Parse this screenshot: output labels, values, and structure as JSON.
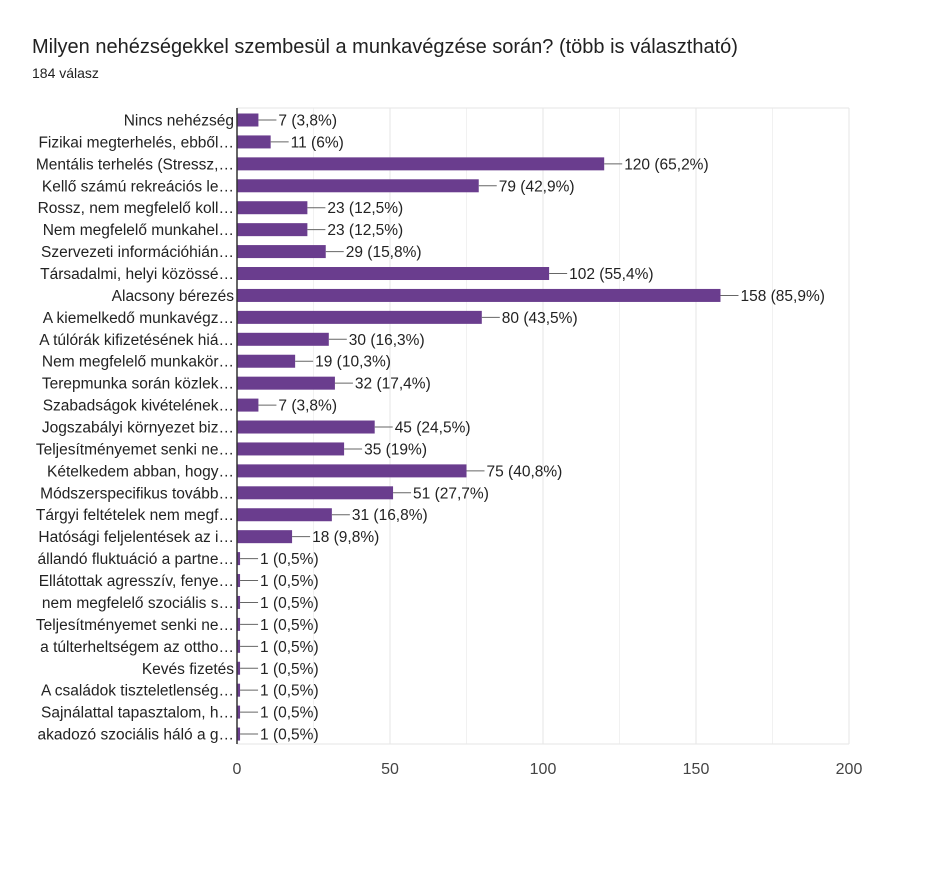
{
  "header": {
    "title": "Milyen nehézségekkel szembesül a munkavégzése során? (több is választható)",
    "subtitle": "184 válasz"
  },
  "colors": {
    "bar": "#6a3d8e",
    "grid": "#e6e6e6",
    "axis": "#333333",
    "connector": "#666666"
  },
  "chart_data": {
    "type": "bar",
    "orientation": "horizontal",
    "title": "Milyen nehézségekkel szembesül a munkavégzése során? (több is választható)",
    "subtitle": "184 válasz",
    "xlim": [
      0,
      200
    ],
    "ticks": [
      0,
      50,
      100,
      150,
      200
    ],
    "tick_labels": [
      "0",
      "50",
      "100",
      "150",
      "200"
    ],
    "grid": true,
    "categories": [
      "Nincs nehézség",
      "Fizikai megterhelés, ebből…",
      "Mentális terhelés (Stressz,…",
      "Kellő számú rekreációs le…",
      "Rossz, nem megfelelő koll…",
      "Nem megfelelő munkahel…",
      "Szervezeti információhián…",
      "Társadalmi, helyi közössé…",
      "Alacsony bérezés",
      "A kiemelkedő munkavégz…",
      "A túlórák kifizetésének hiá…",
      "Nem megfelelő munkakör…",
      "Terepmunka során közlek…",
      "Szabadságok kivételének…",
      "Jogszabályi környezet biz…",
      "Teljesítményemet senki ne…",
      "Kételkedem abban, hogy…",
      "Módszerspecifikus tovább…",
      "Tárgyi feltételek nem megf…",
      "Hatósági feljelentések az i…",
      "állandó fluktuáció a partne…",
      "Ellátottak agresszív, fenye…",
      "nem megfelelő szociális s…",
      "Teljesítményemet senki ne…",
      "a túlterheltségem az ottho…",
      "Kevés fizetés",
      "A családok tiszteletlenség…",
      "Sajnálattal tapasztalom, h…",
      "akadozó szociális háló a g…"
    ],
    "values": [
      7,
      11,
      120,
      79,
      23,
      23,
      29,
      102,
      158,
      80,
      30,
      19,
      32,
      7,
      45,
      35,
      75,
      51,
      31,
      18,
      1,
      1,
      1,
      1,
      1,
      1,
      1,
      1,
      1
    ],
    "value_labels": [
      "7 (3,8%)",
      "11 (6%)",
      "120 (65,2%)",
      "79 (42,9%)",
      "23 (12,5%)",
      "23 (12,5%)",
      "29 (15,8%)",
      "102 (55,4%)",
      "158 (85,9%)",
      "80 (43,5%)",
      "30 (16,3%)",
      "19 (10,3%)",
      "32 (17,4%)",
      "7 (3,8%)",
      "45 (24,5%)",
      "35 (19%)",
      "75 (40,8%)",
      "51 (27,7%)",
      "31 (16,8%)",
      "18 (9,8%)",
      "1 (0,5%)",
      "1 (0,5%)",
      "1 (0,5%)",
      "1 (0,5%)",
      "1 (0,5%)",
      "1 (0,5%)",
      "1 (0,5%)",
      "1 (0,5%)",
      "1 (0,5%)"
    ]
  }
}
